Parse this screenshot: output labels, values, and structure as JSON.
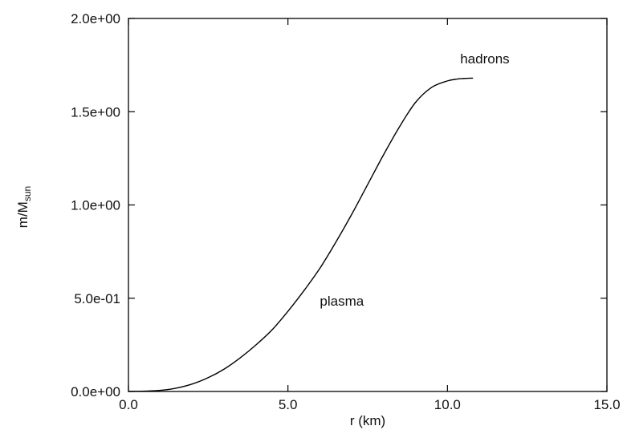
{
  "chart_data": {
    "type": "line",
    "xlabel": "r (km)",
    "ylabel": {
      "main": "m/M",
      "sub": "sun"
    },
    "xlim": [
      0,
      15
    ],
    "ylim": [
      0,
      2
    ],
    "grid": false,
    "x_ticks": [
      {
        "value": 0,
        "label": "0.0"
      },
      {
        "value": 5,
        "label": "5.0"
      },
      {
        "value": 10,
        "label": "10.0"
      },
      {
        "value": 15,
        "label": "15.0"
      }
    ],
    "y_ticks": [
      {
        "value": 0,
        "label": "0.0e+00"
      },
      {
        "value": 0.5,
        "label": "5.0e-01"
      },
      {
        "value": 1.0,
        "label": "1.0e+00"
      },
      {
        "value": 1.5,
        "label": "1.5e+00"
      },
      {
        "value": 2.0,
        "label": "2.0e+00"
      }
    ],
    "annotations": [
      {
        "text": "hadrons",
        "x": 10.4,
        "y": 1.76
      },
      {
        "text": "plasma",
        "x": 6.0,
        "y": 0.46
      }
    ],
    "series": [
      {
        "color": "#000000",
        "x": [
          0,
          0.5,
          1.0,
          1.5,
          2.0,
          2.5,
          3.0,
          3.5,
          4.0,
          4.5,
          5.0,
          5.5,
          6.0,
          6.5,
          7.0,
          7.5,
          8.0,
          8.5,
          9.0,
          9.5,
          10.0,
          10.3,
          10.5,
          10.8
        ],
        "y": [
          0,
          0.002,
          0.006,
          0.018,
          0.04,
          0.074,
          0.12,
          0.18,
          0.25,
          0.33,
          0.43,
          0.54,
          0.66,
          0.8,
          0.95,
          1.11,
          1.27,
          1.42,
          1.55,
          1.63,
          1.665,
          1.675,
          1.678,
          1.68
        ]
      }
    ]
  }
}
